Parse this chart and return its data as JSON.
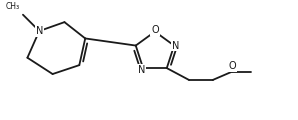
{
  "bg_color": "#ffffff",
  "line_color": "#1a1a1a",
  "line_width": 1.3,
  "font_size": 6.5,
  "fig_width": 2.98,
  "fig_height": 1.2,
  "dpi": 100,
  "xlim": [
    0.0,
    10.0
  ],
  "ylim": [
    0.0,
    4.0
  ]
}
